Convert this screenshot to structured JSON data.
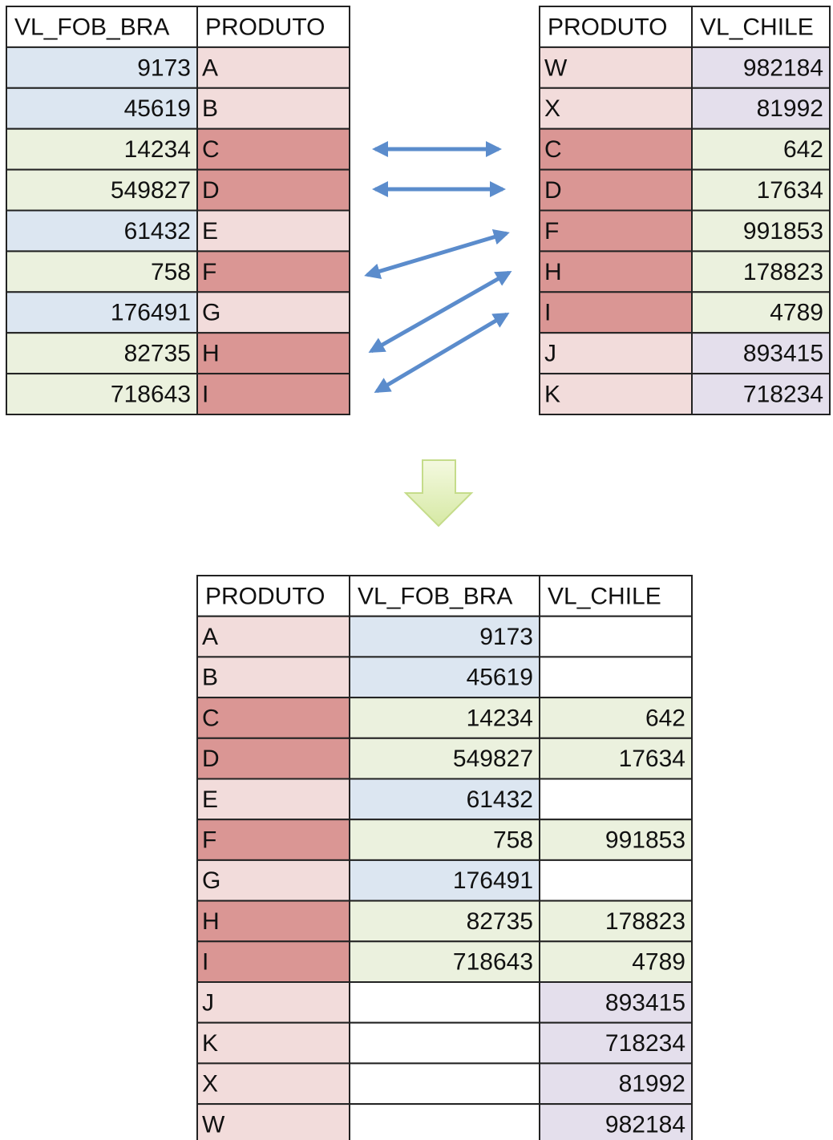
{
  "left_table": {
    "header": [
      "VL_FOB_BRA",
      "PRODUTO"
    ],
    "rows": [
      [
        9173,
        "A"
      ],
      [
        45619,
        "B"
      ],
      [
        14234,
        "C"
      ],
      [
        549827,
        "D"
      ],
      [
        61432,
        "E"
      ],
      [
        758,
        "F"
      ],
      [
        176491,
        "G"
      ],
      [
        82735,
        "H"
      ],
      [
        718643,
        "I"
      ]
    ]
  },
  "right_table": {
    "header": [
      "PRODUTO",
      "VL_CHILE"
    ],
    "rows": [
      [
        "W",
        982184
      ],
      [
        "X",
        81992
      ],
      [
        "C",
        642
      ],
      [
        "D",
        17634
      ],
      [
        "F",
        991853
      ],
      [
        "H",
        178823
      ],
      [
        "I",
        4789
      ],
      [
        "J",
        893415
      ],
      [
        "K",
        718234
      ]
    ]
  },
  "result_table": {
    "header": [
      "PRODUTO",
      "VL_FOB_BRA",
      "VL_CHILE"
    ],
    "rows": [
      [
        "A",
        9173,
        null
      ],
      [
        "B",
        45619,
        null
      ],
      [
        "C",
        14234,
        642
      ],
      [
        "D",
        549827,
        17634
      ],
      [
        "E",
        61432,
        null
      ],
      [
        "F",
        758,
        991853
      ],
      [
        "G",
        176491,
        null
      ],
      [
        "H",
        82735,
        178823
      ],
      [
        "I",
        718643,
        4789
      ],
      [
        "J",
        null,
        893415
      ],
      [
        "K",
        null,
        718234
      ],
      [
        "X",
        null,
        81992
      ],
      [
        "W",
        null,
        982184
      ]
    ]
  }
}
